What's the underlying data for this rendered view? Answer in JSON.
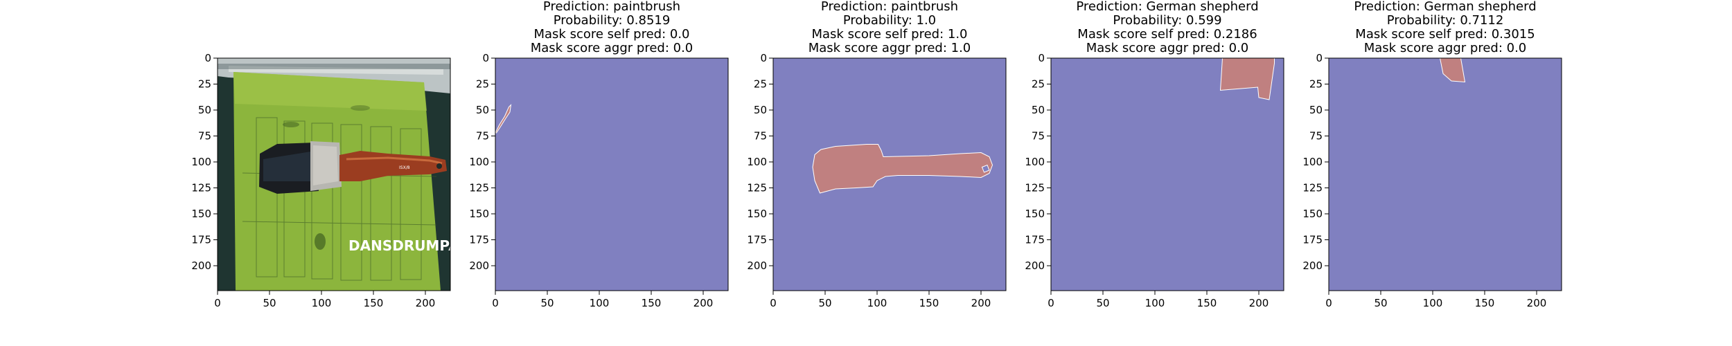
{
  "figure": {
    "panels": [
      {
        "id": "input-image",
        "title_lines": []
      },
      {
        "id": "mask-1",
        "title_lines": [
          "Prediction: paintbrush",
          "Probability: 0.8519",
          "Mask score self pred: 0.0",
          "Mask score aggr pred: 0.0"
        ]
      },
      {
        "id": "mask-2",
        "title_lines": [
          "Prediction: paintbrush",
          "Probability: 1.0",
          "Mask score self pred: 1.0",
          "Mask score aggr pred: 1.0"
        ]
      },
      {
        "id": "mask-3",
        "title_lines": [
          "Prediction: German shepherd",
          "Probability: 0.599",
          "Mask score self pred: 0.2186",
          "Mask score aggr pred: 0.0"
        ]
      },
      {
        "id": "mask-4",
        "title_lines": [
          "Prediction: German shepherd",
          "Probability: 0.7112",
          "Mask score self pred: 0.3015",
          "Mask score aggr pred: 0.0"
        ]
      }
    ],
    "image_watermark": "DANSDRUMPAGE",
    "image_brush_label": "ISX/8",
    "colors": {
      "mask_background": "#8080c0",
      "mask_foreground": "#c08080",
      "mask_edge": "#ffffff",
      "axes_edge": "#000000"
    }
  },
  "chart_data": {
    "type": "heatmap",
    "image_size": [
      224,
      224
    ],
    "x_ticks": [
      0,
      50,
      100,
      150,
      200
    ],
    "y_ticks": [
      0,
      25,
      50,
      75,
      100,
      125,
      150,
      175,
      200
    ],
    "xlim": [
      0,
      224
    ],
    "ylim": [
      224,
      0
    ],
    "panels": [
      {
        "kind": "image",
        "description_hidden": true
      },
      {
        "kind": "mask",
        "regions": [
          [
            [
              0,
              72
            ],
            [
              4,
              64
            ],
            [
              9,
              56
            ],
            [
              13,
              47
            ],
            [
              15,
              45
            ],
            [
              14,
              52
            ],
            [
              10,
              58
            ],
            [
              5,
              66
            ],
            [
              1,
              72
            ]
          ]
        ]
      },
      {
        "kind": "mask",
        "regions": [
          [
            [
              40,
              93
            ],
            [
              46,
              88
            ],
            [
              60,
              85
            ],
            [
              90,
              83
            ],
            [
              101,
              83
            ],
            [
              104,
              89
            ],
            [
              106,
              95
            ],
            [
              150,
              94
            ],
            [
              180,
              92
            ],
            [
              200,
              91
            ],
            [
              208,
              95
            ],
            [
              211,
              103
            ],
            [
              208,
              111
            ],
            [
              200,
              115
            ],
            [
              180,
              114
            ],
            [
              150,
              113
            ],
            [
              120,
              113
            ],
            [
              108,
              114
            ],
            [
              100,
              118
            ],
            [
              96,
              124
            ],
            [
              80,
              125
            ],
            [
              60,
              126
            ],
            [
              45,
              130
            ],
            [
              40,
              118
            ],
            [
              38,
              105
            ]
          ]
        ],
        "holes": [
          [
            [
              201,
              105
            ],
            [
              206,
              103
            ],
            [
              208,
              108
            ],
            [
              203,
              110
            ]
          ]
        ]
      },
      {
        "kind": "mask",
        "regions": [
          [
            [
              165,
              0
            ],
            [
              215,
              0
            ],
            [
              215,
              5
            ],
            [
              210,
              40
            ],
            [
              200,
              38
            ],
            [
              199,
              28
            ],
            [
              163,
              31
            ]
          ]
        ]
      },
      {
        "kind": "mask",
        "regions": [
          [
            [
              107,
              0
            ],
            [
              127,
              0
            ],
            [
              131,
              23
            ],
            [
              118,
              22
            ],
            [
              110,
              15
            ]
          ]
        ]
      }
    ]
  }
}
